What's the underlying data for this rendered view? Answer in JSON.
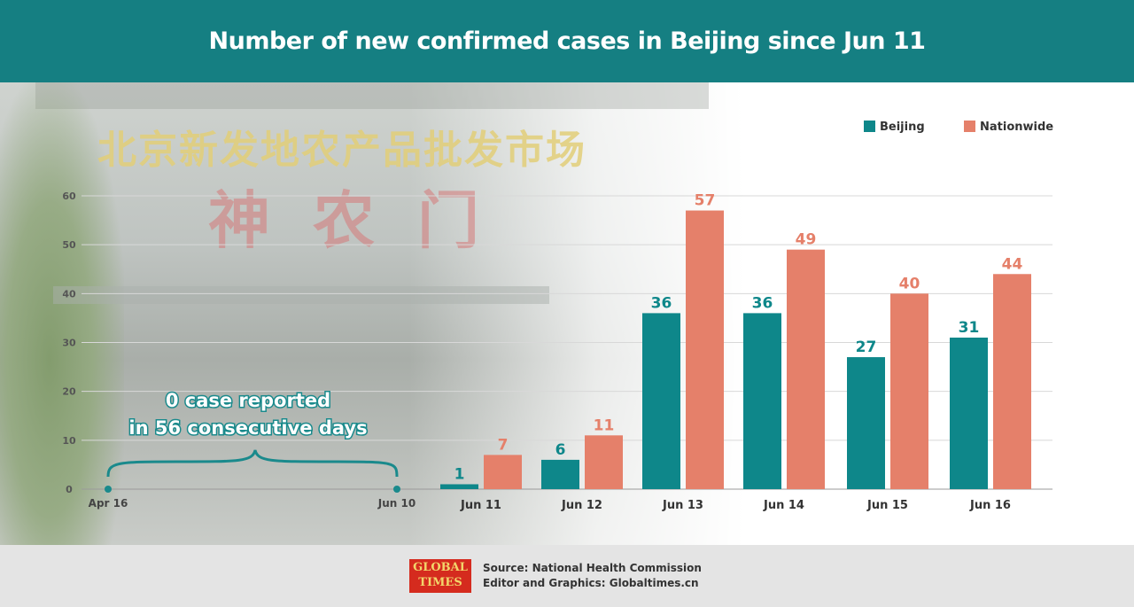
{
  "title": "Number of new confirmed cases in Beijing since Jun 11",
  "background_sign": {
    "line1": "北京新发地农产品批发市场",
    "line2": "神农门"
  },
  "annotation": {
    "line1": "0 case reported",
    "line2": "in 56 consecutive days",
    "start_label": "Apr 16",
    "end_label": "Jun 10"
  },
  "legend": {
    "position": "top-right"
  },
  "footer": {
    "source": "Source: National Health Commission",
    "editor": "Editor and Graphics: Globaltimes.cn",
    "logo_line1": "GLOBAL",
    "logo_line2": "TIMES"
  },
  "colors": {
    "header": "#157f82",
    "beijing": "#0e878a",
    "nationwide": "#e5806a",
    "annotation": "#1a8a8c"
  },
  "chart_data": {
    "type": "bar",
    "title": "Number of new confirmed cases in Beijing since Jun 11",
    "xlabel": "",
    "ylabel": "",
    "ylim": [
      0,
      60
    ],
    "yticks": [
      0,
      10,
      20,
      30,
      40,
      50,
      60
    ],
    "grid": true,
    "categories": [
      "Jun 11",
      "Jun 12",
      "Jun 13",
      "Jun 14",
      "Jun 15",
      "Jun 16"
    ],
    "series": [
      {
        "name": "Beijing",
        "values": [
          1,
          6,
          36,
          36,
          27,
          31
        ]
      },
      {
        "name": "Nationwide",
        "values": [
          7,
          11,
          57,
          49,
          40,
          44
        ]
      }
    ]
  }
}
